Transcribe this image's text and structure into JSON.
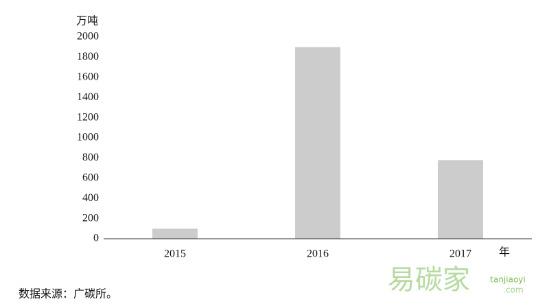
{
  "chart_data": {
    "type": "bar",
    "y_label": "万吨",
    "x_label": "年",
    "categories": [
      "2015",
      "2016",
      "2017"
    ],
    "values": [
      100,
      1900,
      780
    ],
    "color": "#cccccc",
    "ylim": [
      0,
      2000
    ],
    "yticks": [
      0,
      200,
      400,
      600,
      800,
      1000,
      1200,
      1400,
      1600,
      1800,
      2000
    ],
    "grid": false,
    "source": "数据来源：广碳所。",
    "watermark": "易碳家",
    "watermark_tag": "tanjiaoyi",
    "watermark_domain": ".com"
  }
}
